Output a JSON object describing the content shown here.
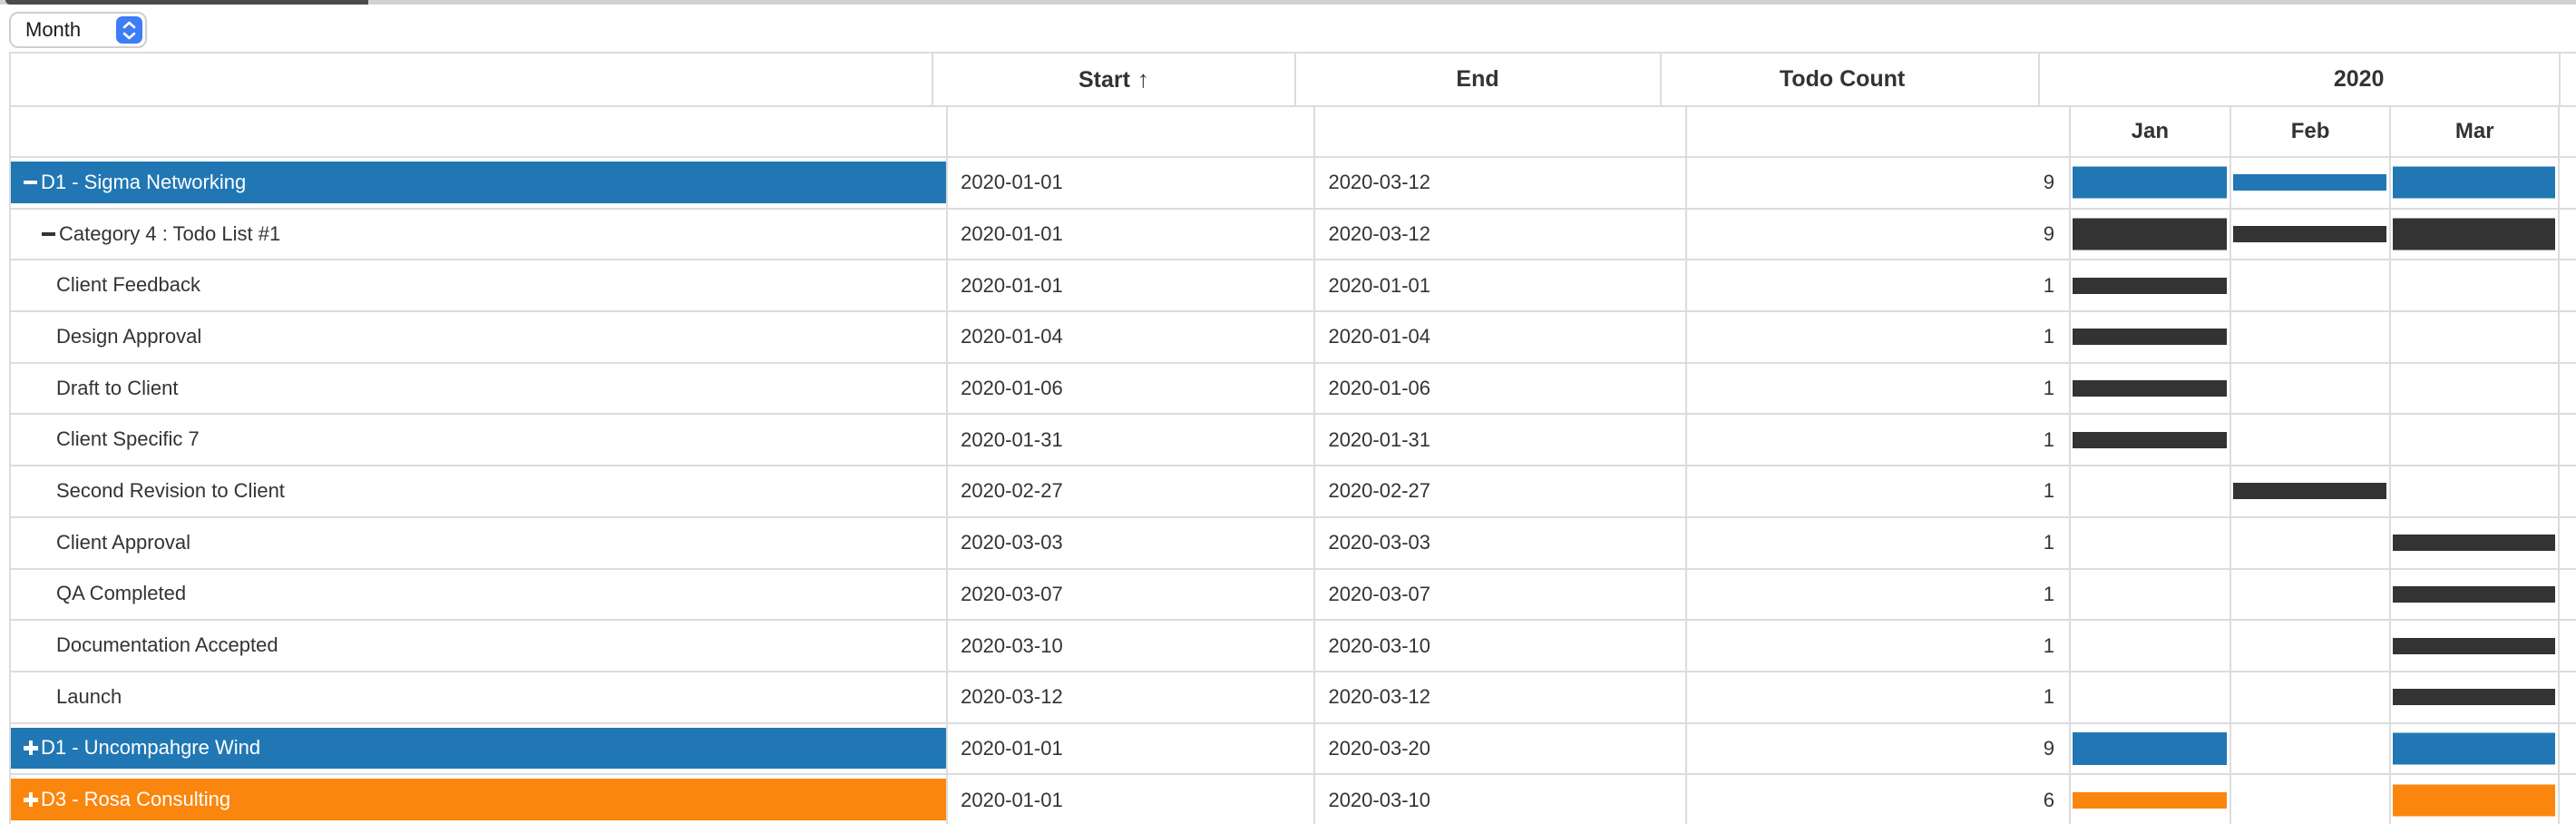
{
  "toolbar": {
    "view_mode_select": {
      "value": "Month"
    }
  },
  "grid": {
    "headers": {
      "start": "Start",
      "sort_arrow": "↑",
      "end": "End",
      "todo_count": "Todo Count"
    },
    "year_header": "2020",
    "month_headers": [
      "Jan",
      "Feb",
      "Mar"
    ],
    "colors": {
      "blue": "#2177b4",
      "orange": "#fb860d",
      "dark": "#333333",
      "grid_line": "#dcdcdc",
      "select_accent": "#3d7df7",
      "header_text": "#333333"
    },
    "rows": [
      {
        "label": "D1 - Sigma Networking",
        "level": 0,
        "toggle": "collapse",
        "highlight": "blue",
        "start": "2020-01-01",
        "end": "2020-03-12",
        "todo_count": "9",
        "bar_color": "blue",
        "bars": [
          {
            "month": "Jan",
            "height": 35
          },
          {
            "month": "Feb",
            "height": 18
          },
          {
            "month": "Mar",
            "height": 35
          }
        ]
      },
      {
        "label": "Category 4 : Todo List #1",
        "level": 1,
        "toggle": "collapse",
        "highlight": null,
        "start": "2020-01-01",
        "end": "2020-03-12",
        "todo_count": "9",
        "bar_color": "dark",
        "bars": [
          {
            "month": "Jan",
            "height": 35
          },
          {
            "month": "Feb",
            "height": 18
          },
          {
            "month": "Mar",
            "height": 35
          }
        ]
      },
      {
        "label": "Client Feedback",
        "level": 2,
        "toggle": null,
        "highlight": null,
        "start": "2020-01-01",
        "end": "2020-01-01",
        "todo_count": "1",
        "bar_color": "dark",
        "bars": [
          {
            "month": "Jan",
            "height": 18
          }
        ]
      },
      {
        "label": "Design Approval",
        "level": 2,
        "toggle": null,
        "highlight": null,
        "start": "2020-01-04",
        "end": "2020-01-04",
        "todo_count": "1",
        "bar_color": "dark",
        "bars": [
          {
            "month": "Jan",
            "height": 18
          }
        ]
      },
      {
        "label": "Draft to Client",
        "level": 2,
        "toggle": null,
        "highlight": null,
        "start": "2020-01-06",
        "end": "2020-01-06",
        "todo_count": "1",
        "bar_color": "dark",
        "bars": [
          {
            "month": "Jan",
            "height": 18
          }
        ]
      },
      {
        "label": "Client Specific 7",
        "level": 2,
        "toggle": null,
        "highlight": null,
        "start": "2020-01-31",
        "end": "2020-01-31",
        "todo_count": "1",
        "bar_color": "dark",
        "bars": [
          {
            "month": "Jan",
            "height": 18
          }
        ]
      },
      {
        "label": "Second Revision to Client",
        "level": 2,
        "toggle": null,
        "highlight": null,
        "start": "2020-02-27",
        "end": "2020-02-27",
        "todo_count": "1",
        "bar_color": "dark",
        "bars": [
          {
            "month": "Feb",
            "height": 18
          }
        ]
      },
      {
        "label": "Client Approval",
        "level": 2,
        "toggle": null,
        "highlight": null,
        "start": "2020-03-03",
        "end": "2020-03-03",
        "todo_count": "1",
        "bar_color": "dark",
        "bars": [
          {
            "month": "Mar",
            "height": 18
          }
        ]
      },
      {
        "label": "QA Completed",
        "level": 2,
        "toggle": null,
        "highlight": null,
        "start": "2020-03-07",
        "end": "2020-03-07",
        "todo_count": "1",
        "bar_color": "dark",
        "bars": [
          {
            "month": "Mar",
            "height": 18
          }
        ]
      },
      {
        "label": "Documentation Accepted",
        "level": 2,
        "toggle": null,
        "highlight": null,
        "start": "2020-03-10",
        "end": "2020-03-10",
        "todo_count": "1",
        "bar_color": "dark",
        "bars": [
          {
            "month": "Mar",
            "height": 18
          }
        ]
      },
      {
        "label": "Launch",
        "level": 2,
        "toggle": null,
        "highlight": null,
        "start": "2020-03-12",
        "end": "2020-03-12",
        "todo_count": "1",
        "bar_color": "dark",
        "bars": [
          {
            "month": "Mar",
            "height": 18
          }
        ]
      },
      {
        "label": "D1 - Uncompahgre Wind",
        "level": 0,
        "toggle": "expand",
        "highlight": "blue",
        "start": "2020-01-01",
        "end": "2020-03-20",
        "todo_count": "9",
        "bar_color": "blue",
        "bars": [
          {
            "month": "Jan",
            "height": 36
          },
          {
            "month": "Mar",
            "height": 35
          }
        ]
      },
      {
        "label": "D3 - Rosa Consulting",
        "level": 0,
        "toggle": "expand",
        "highlight": "orange",
        "start": "2020-01-01",
        "end": "2020-03-10",
        "todo_count": "6",
        "bar_color": "orange",
        "bars": [
          {
            "month": "Jan",
            "height": 18
          },
          {
            "month": "Mar",
            "height": 35
          }
        ]
      }
    ]
  }
}
